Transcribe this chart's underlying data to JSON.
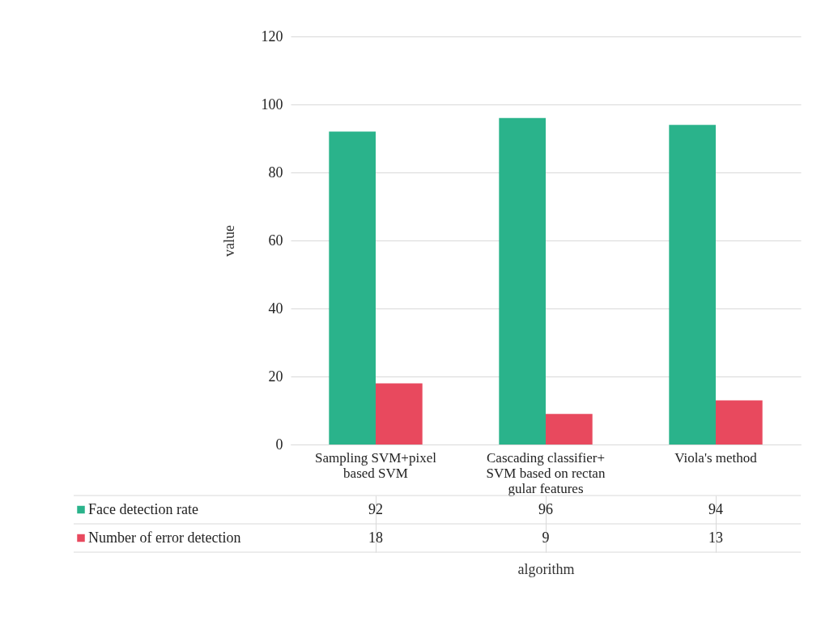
{
  "chart_data": {
    "type": "bar",
    "xlabel": "algorithm",
    "ylabel": "value",
    "categories": [
      "Sampling SVM+pixel based SVM",
      "Cascading classifier+ SVM based on rectan gular features",
      "Viola's method"
    ],
    "series": [
      {
        "name": "Face detection rate",
        "color": "#2ab38b",
        "values": [
          92,
          96,
          94
        ]
      },
      {
        "name": "Number of error detection",
        "color": "#e8495e",
        "values": [
          18,
          9,
          13
        ]
      }
    ],
    "ylim": [
      0,
      120
    ],
    "yticks": [
      0,
      20,
      40,
      60,
      80,
      100,
      120
    ],
    "grid": "y",
    "legend": "bottom",
    "data_labels": true
  }
}
